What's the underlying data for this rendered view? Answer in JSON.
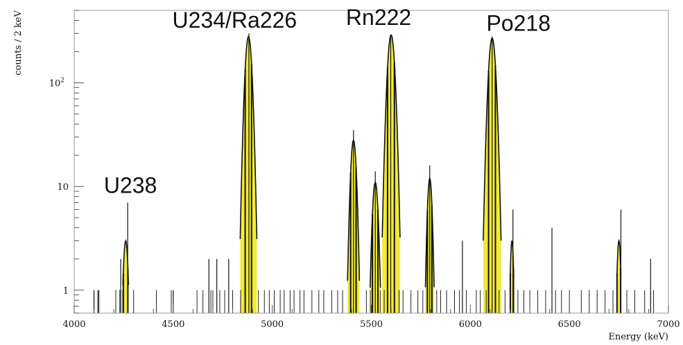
{
  "chart_data": {
    "type": "histogram",
    "xlabel": "Energy (keV)",
    "ylabel": "counts / 2 keV",
    "xlim": [
      4000,
      7000
    ],
    "ylim": [
      0.6,
      500
    ],
    "yscale": "log",
    "grid": false,
    "legend": "none",
    "bin_width": 2,
    "x_ticks": [
      {
        "value": 4000,
        "label": "4000"
      },
      {
        "value": 4500,
        "label": "4500"
      },
      {
        "value": 5000,
        "label": "5000"
      },
      {
        "value": 5500,
        "label": "5500"
      },
      {
        "value": 6000,
        "label": "6000"
      },
      {
        "value": 6500,
        "label": "6500"
      },
      {
        "value": 7000,
        "label": "7000"
      }
    ],
    "y_ticks": [
      {
        "value": 1,
        "label": "1"
      },
      {
        "value": 10,
        "label": "10"
      },
      {
        "value": 100,
        "label": "10",
        "exponent": "2"
      }
    ],
    "annotations": [
      {
        "text": "U238",
        "x": 4270,
        "y": 7
      },
      {
        "text": "U234/Ra226",
        "x": 4880,
        "y": 300
      },
      {
        "text": "Rn222",
        "x": 5600,
        "y": 300
      },
      {
        "text": "Po218",
        "x": 6110,
        "y": 280
      }
    ],
    "peaks": [
      {
        "center": 4260,
        "amplitude": 3,
        "sigma": 10
      },
      {
        "center": 4880,
        "amplitude": 280,
        "sigma": 14
      },
      {
        "center": 5410,
        "amplitude": 28,
        "sigma": 12
      },
      {
        "center": 5520,
        "amplitude": 11,
        "sigma": 12
      },
      {
        "center": 5600,
        "amplitude": 290,
        "sigma": 15
      },
      {
        "center": 5795,
        "amplitude": 12,
        "sigma": 10
      },
      {
        "center": 6110,
        "amplitude": 270,
        "sigma": 15
      },
      {
        "center": 6210,
        "amplitude": 3,
        "sigma": 7
      },
      {
        "center": 6750,
        "amplitude": 3,
        "sigma": 8
      }
    ],
    "spikes": [
      {
        "x": 4270,
        "y": 7
      },
      {
        "x": 4235,
        "y": 2
      },
      {
        "x": 4882,
        "y": 300
      },
      {
        "x": 5410,
        "y": 35
      },
      {
        "x": 5520,
        "y": 14
      },
      {
        "x": 5598,
        "y": 290
      },
      {
        "x": 5795,
        "y": 16
      },
      {
        "x": 5960,
        "y": 3
      },
      {
        "x": 6110,
        "y": 280
      },
      {
        "x": 6215,
        "y": 6
      },
      {
        "x": 6412,
        "y": 4
      },
      {
        "x": 6760,
        "y": 6
      },
      {
        "x": 6910,
        "y": 2
      },
      {
        "x": 4680,
        "y": 2
      },
      {
        "x": 4720,
        "y": 2
      },
      {
        "x": 4780,
        "y": 2
      },
      {
        "x": 4500,
        "y": 1
      },
      {
        "x": 4120,
        "y": 1
      },
      {
        "x": 4100,
        "y": 1
      }
    ],
    "background_counts": [
      4100,
      4125,
      4210,
      4230,
      4245,
      4300,
      4415,
      4490,
      4620,
      4650,
      4690,
      4700,
      4735,
      4760,
      4800,
      4840,
      4930,
      4960,
      4985,
      5010,
      5040,
      5060,
      5090,
      5110,
      5140,
      5160,
      5200,
      5235,
      5260,
      5300,
      5330,
      5355,
      5475,
      5495,
      5545,
      5565,
      5640,
      5660,
      5700,
      5735,
      5760,
      5830,
      5850,
      5880,
      5920,
      5945,
      5980,
      6030,
      6050,
      6080,
      6145,
      6175,
      6240,
      6270,
      6300,
      6340,
      6380,
      6430,
      6460,
      6500,
      6560,
      6600,
      6640,
      6680,
      6720,
      6790,
      6830,
      6880,
      6925
    ]
  }
}
